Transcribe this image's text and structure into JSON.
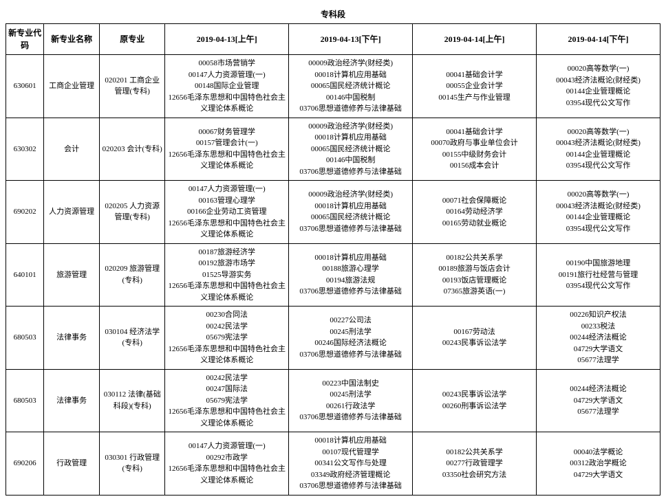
{
  "section_title": "专科段",
  "headers": {
    "code": "新专业代码",
    "name": "新专业名称",
    "orig": "原专业",
    "s1": "2019-04-13[上午]",
    "s2": "2019-04-13[下午]",
    "s3": "2019-04-14[上午]",
    "s4": "2019-04-14[下午]"
  },
  "rows": [
    {
      "code": "630601",
      "name": "工商企业管理",
      "orig": "020201 工商企业管理(专科)",
      "s1": "00058市场营销学\n00147人力资源管理(一)\n00148国际企业管理\n12656毛泽东思想和中国特色社会主义理论体系概论",
      "s2": "00009政治经济学(财经类)\n00018计算机应用基础\n00065国民经济统计概论\n00146中国税制\n03706思想道德修养与法律基础",
      "s3": "00041基础会计学\n00055企业会计学\n00145生产与作业管理",
      "s4": "00020高等数学(一)\n00043经济法概论(财经类)\n00144企业管理概论\n03954现代公文写作"
    },
    {
      "code": "630302",
      "name": "会计",
      "orig": "020203 会计(专科)",
      "s1": "00067财务管理学\n00157管理会计(一)\n12656毛泽东思想和中国特色社会主义理论体系概论",
      "s2": "00009政治经济学(财经类)\n00018计算机应用基础\n00065国民经济统计概论\n00146中国税制\n03706思想道德修养与法律基础",
      "s3": "00041基础会计学\n00070政府与事业单位会计\n00155中级财务会计\n00156成本会计",
      "s4": "00020高等数学(一)\n00043经济法概论(财经类)\n00144企业管理概论\n03954现代公文写作"
    },
    {
      "code": "690202",
      "name": "人力资源管理",
      "orig": "020205 人力资源管理(专科)",
      "s1": "00147人力资源管理(一)\n00163管理心理学\n00166企业劳动工资管理\n12656毛泽东思想和中国特色社会主义理论体系概论",
      "s2": "00009政治经济学(财经类)\n00018计算机应用基础\n00065国民经济统计概论\n03706思想道德修养与法律基础",
      "s3": "00071社会保障概论\n00164劳动经济学\n00165劳动就业概论",
      "s4": "00020高等数学(一)\n00043经济法概论(财经类)\n00144企业管理概论\n03954现代公文写作"
    },
    {
      "code": "640101",
      "name": "旅游管理",
      "orig": "020209 旅游管理(专科)",
      "s1": "00187旅游经济学\n00192旅游市场学\n01525导游实务\n12656毛泽东思想和中国特色社会主义理论体系概论",
      "s2": "00018计算机应用基础\n00188旅游心理学\n00194旅游法规\n03706思想道德修养与法律基础",
      "s3": "00182公共关系学\n00189旅游与饭店会计\n00193饭店管理概论\n07365旅游英语(一)",
      "s4": "00190中国旅游地理\n00191旅行社经营与管理\n03954现代公文写作"
    },
    {
      "code": "680503",
      "name": "法律事务",
      "orig": "030104 经济法学(专科)",
      "s1": "00230合同法\n00242民法学\n05679宪法学\n12656毛泽东思想和中国特色社会主义理论体系概论",
      "s2": "00227公司法\n00245刑法学\n00246国际经济法概论\n03706思想道德修养与法律基础",
      "s3": "00167劳动法\n00243民事诉讼法学",
      "s4": "00226知识产权法\n00233税法\n00244经济法概论\n04729大学语文\n05677法理学"
    },
    {
      "code": "680503",
      "name": "法律事务",
      "orig": "030112 法律(基础科段)(专科)",
      "s1": "00242民法学\n00247国际法\n05679宪法学\n12656毛泽东思想和中国特色社会主义理论体系概论",
      "s2": "00223中国法制史\n00245刑法学\n00261行政法学\n03706思想道德修养与法律基础",
      "s3": "00243民事诉讼法学\n00260刑事诉讼法学",
      "s4": "00244经济法概论\n04729大学语文\n05677法理学"
    },
    {
      "code": "690206",
      "name": "行政管理",
      "orig": "030301 行政管理(专科)",
      "s1": "00147人力资源管理(一)\n00292市政学\n12656毛泽东思想和中国特色社会主义理论体系概论",
      "s2": "00018计算机应用基础\n00107现代管理学\n00341公文写作与处理\n03349政府经济管理概论\n03706思想道德修养与法律基础",
      "s3": "00182公共关系学\n00277行政管理学\n03350社会研究方法",
      "s4": "00040法学概论\n00312政治学概论\n04729大学语文"
    }
  ],
  "style": {
    "border_color": "#000000",
    "background_color": "#ffffff",
    "font_family": "SimSun",
    "header_font_size": 12,
    "cell_font_size": 11,
    "line_height": 1.5
  }
}
